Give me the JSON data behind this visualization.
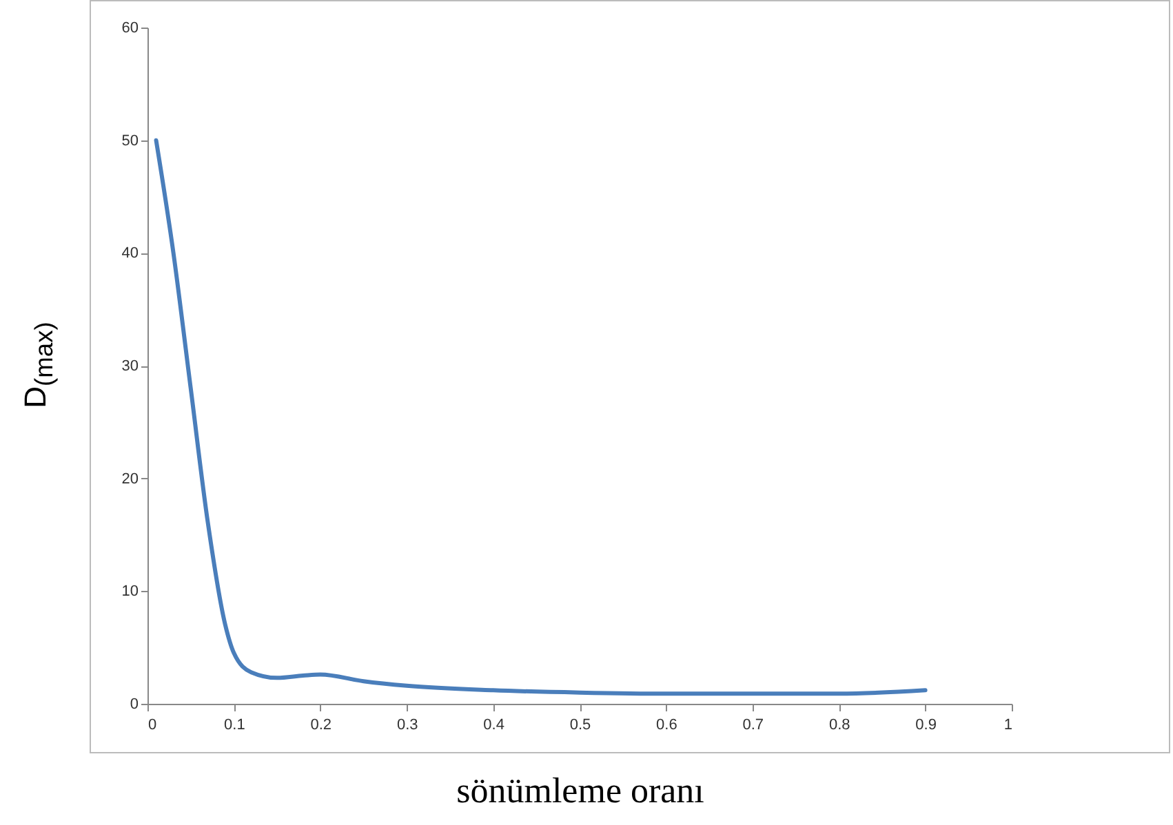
{
  "chart_data": {
    "type": "line",
    "xlabel": "sönümleme oranı",
    "ylabel": "D$_{(max)}$",
    "x": [
      0.01,
      0.03,
      0.05,
      0.07,
      0.09,
      0.1,
      0.12,
      0.15,
      0.18,
      0.2,
      0.25,
      0.3,
      0.4,
      0.5,
      0.6,
      0.7,
      0.8,
      0.9
    ],
    "series": [
      {
        "color": "#4a7ebb",
        "values": [
          50,
          40,
          28,
          16,
          7,
          4.5,
          2.8,
          2.3,
          2.5,
          2.6,
          2,
          1.6,
          1.2,
          1.0,
          0.9,
          0.9,
          0.9,
          1.2
        ]
      }
    ],
    "xlim": [
      0,
      1
    ],
    "xticks": [
      0,
      0.1,
      0.2,
      0.3,
      0.4,
      0.5,
      0.6,
      0.7,
      0.8,
      0.9,
      1
    ],
    "ylim": [
      0,
      60
    ],
    "yticks": [
      0,
      10,
      20,
      30,
      40,
      50,
      60
    ]
  }
}
